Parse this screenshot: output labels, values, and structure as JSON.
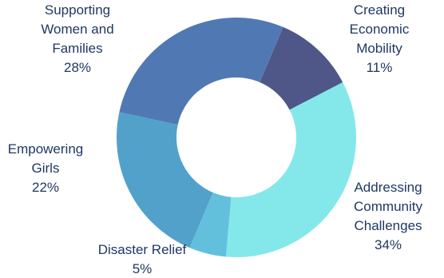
{
  "chart_data": {
    "type": "pie",
    "donut": true,
    "slices": [
      {
        "label_lines": [
          "Creating",
          "Economic",
          "Mobility"
        ],
        "value": 11,
        "percent_label": "11%",
        "color": "#4f5788"
      },
      {
        "label_lines": [
          "Addressing",
          "Community",
          "Challenges"
        ],
        "value": 34,
        "percent_label": "34%",
        "color": "#84e8ea"
      },
      {
        "label_lines": [
          "Disaster Relief"
        ],
        "value": 5,
        "percent_label": "5%",
        "color": "#63c0dd"
      },
      {
        "label_lines": [
          "Empowering",
          "Girls"
        ],
        "value": 22,
        "percent_label": "22%",
        "color": "#51a1cb"
      },
      {
        "label_lines": [
          "Supporting",
          "Women and",
          "Families"
        ],
        "value": 28,
        "percent_label": "28%",
        "color": "#5079b4"
      }
    ]
  }
}
